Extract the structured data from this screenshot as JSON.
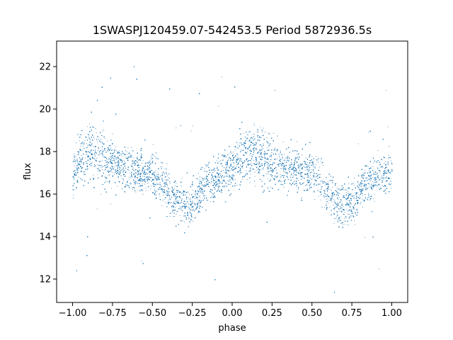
{
  "chart_data": {
    "type": "scatter",
    "title": "1SWASPJ120459.07-542453.5 Period 5872936.5s",
    "xlabel": "phase",
    "ylabel": "flux",
    "xlim": [
      -1.1,
      1.1
    ],
    "ylim": [
      10.9,
      23.2
    ],
    "x_ticks": [
      -1.0,
      -0.75,
      -0.5,
      -0.25,
      0.0,
      0.25,
      0.5,
      0.75,
      1.0
    ],
    "x_tick_labels": [
      "−1.00",
      "−0.75",
      "−0.50",
      "−0.25",
      "0.00",
      "0.25",
      "0.50",
      "0.75",
      "1.00"
    ],
    "y_ticks": [
      12,
      14,
      16,
      18,
      20,
      22
    ],
    "y_tick_labels": [
      "12",
      "14",
      "16",
      "18",
      "20",
      "22"
    ],
    "grid": false,
    "marker_color": "#1f77b4",
    "curve": {
      "phase": [
        0.0,
        0.05,
        0.1,
        0.15,
        0.2,
        0.25,
        0.3,
        0.35,
        0.4,
        0.45,
        0.5,
        0.55,
        0.6,
        0.65,
        0.7,
        0.75,
        0.8,
        0.85,
        0.9,
        0.95,
        1.0
      ],
      "median_flux": [
        16.9,
        17.7,
        17.9,
        18.0,
        17.7,
        17.4,
        17.3,
        17.2,
        17.1,
        17.0,
        16.9,
        16.6,
        16.1,
        15.6,
        15.5,
        15.6,
        16.2,
        16.6,
        16.8,
        17.0,
        17.2
      ],
      "spread": [
        0.9,
        1.1,
        1.2,
        1.2,
        1.1,
        1.0,
        0.9,
        0.9,
        0.9,
        0.9,
        0.9,
        0.9,
        0.9,
        0.9,
        0.9,
        0.9,
        0.9,
        0.9,
        0.9,
        0.9,
        0.9
      ]
    },
    "points_per_phase_unit": 7000,
    "outlier_fraction": 0.012
  }
}
